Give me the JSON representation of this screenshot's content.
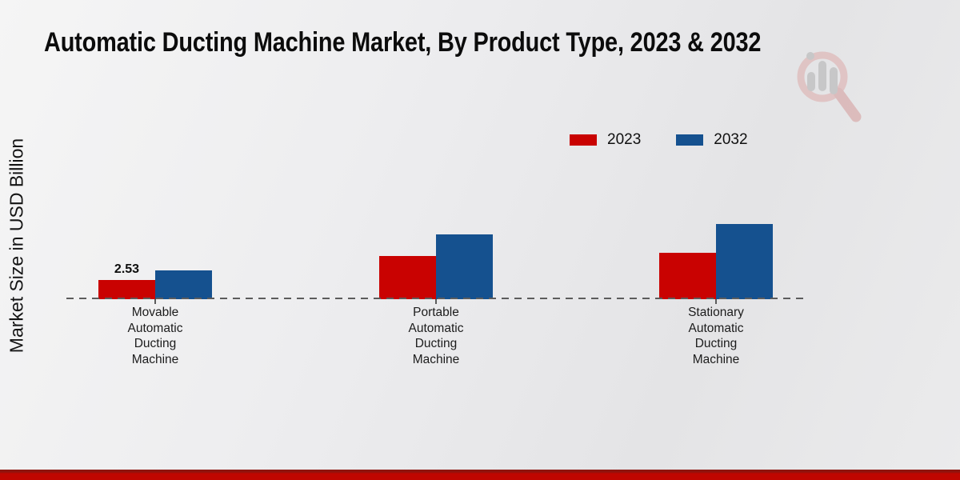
{
  "chart_data": {
    "type": "bar",
    "title": "Automatic Ducting Machine Market, By Product Type, 2023 & 2032",
    "xlabel": "",
    "ylabel": "Market Size in USD Billion",
    "categories": [
      "Movable Automatic Ducting Machine",
      "Portable Automatic Ducting Machine",
      "Stationary Automatic Ducting Machine"
    ],
    "series": [
      {
        "name": "2023",
        "color": "#c90201",
        "values": [
          2.53,
          5.7,
          6.1
        ]
      },
      {
        "name": "2032",
        "color": "#15518f",
        "values": [
          3.8,
          8.5,
          9.9
        ]
      }
    ],
    "value_labels": [
      {
        "series_index": 0,
        "category_index": 0,
        "text": "2.53"
      }
    ],
    "ylim": [
      0,
      12
    ],
    "grid": false,
    "legend_position": "top-right",
    "baseline_style": "dashed"
  },
  "colors": {
    "bar_2023": "#c90201",
    "bar_2032": "#15518f",
    "footer_bar": "#bf0600",
    "axis": "#5c5c5c"
  },
  "watermark": {
    "icon": "magnifier-bar-chart-logo"
  }
}
